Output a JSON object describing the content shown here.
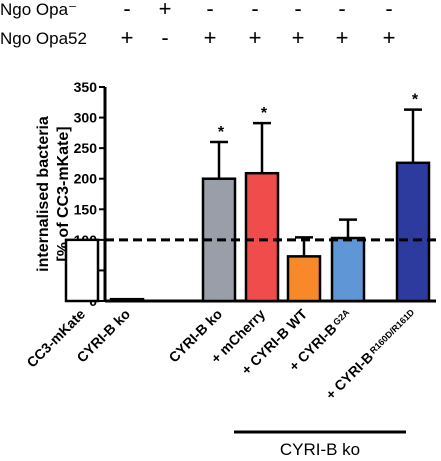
{
  "header_rows": [
    {
      "label": "Ngo Opa⁻",
      "symbols": [
        "-",
        "+",
        "-",
        "-",
        "-",
        "-",
        "-"
      ]
    },
    {
      "label": "Ngo Opa52",
      "symbols": [
        "+",
        "-",
        "+",
        "+",
        "+",
        "+",
        "+"
      ]
    }
  ],
  "group_label": "CYRI-B ko",
  "colors": {
    "bar_colors": [
      "#ffffff",
      "#ffffff",
      "#9a9ea8",
      "#f04c4c",
      "#f7892a",
      "#5e96d6",
      "#2e3b9e"
    ],
    "axis": "#000000"
  },
  "chart_data": {
    "type": "bar",
    "title": "",
    "xlabel": "",
    "ylabel": "internalised bacteria [% of CC3-mKate]",
    "ylim": [
      0,
      350
    ],
    "yticks": [
      0,
      50,
      100,
      150,
      200,
      250,
      300,
      350
    ],
    "reference_line": 100,
    "categories": [
      {
        "main": "CC3-mKate",
        "sub": ""
      },
      {
        "main": "CYRI-B ko",
        "sub": ""
      },
      {
        "main": "CYRI-B ko",
        "sub": ""
      },
      {
        "main": "+ mCherry",
        "sub": ""
      },
      {
        "main": "+ CYRI-B WT",
        "sub": ""
      },
      {
        "main": "+ CYRI-B",
        "sub": "G2A"
      },
      {
        "main": "+ CYRI-B",
        "sub": "R160D/R161D"
      }
    ],
    "values": [
      100,
      3,
      200,
      209,
      73,
      103,
      226
    ],
    "errors": [
      0,
      0,
      60,
      82,
      31,
      30,
      87
    ],
    "significance": [
      "",
      "",
      "*",
      "*",
      "",
      "",
      "*"
    ]
  }
}
